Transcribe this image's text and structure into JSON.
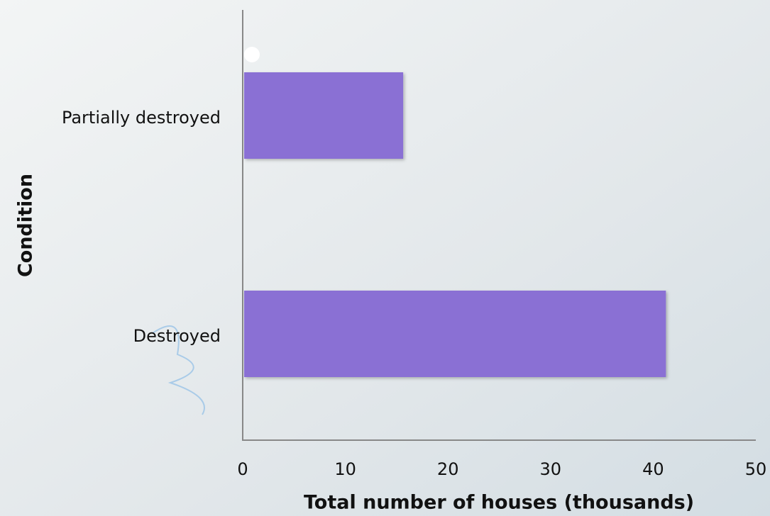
{
  "chart_data": {
    "type": "hbar",
    "categories": [
      "Partially destroyed",
      "Destroyed"
    ],
    "values": [
      15.5,
      41.1
    ],
    "color": "#8a70d4",
    "xlabel": "Total number of houses (thousands)",
    "ylabel": "Condition",
    "xlim": [
      0,
      50
    ],
    "xticks": [
      0,
      10,
      20,
      30,
      40,
      50
    ]
  }
}
